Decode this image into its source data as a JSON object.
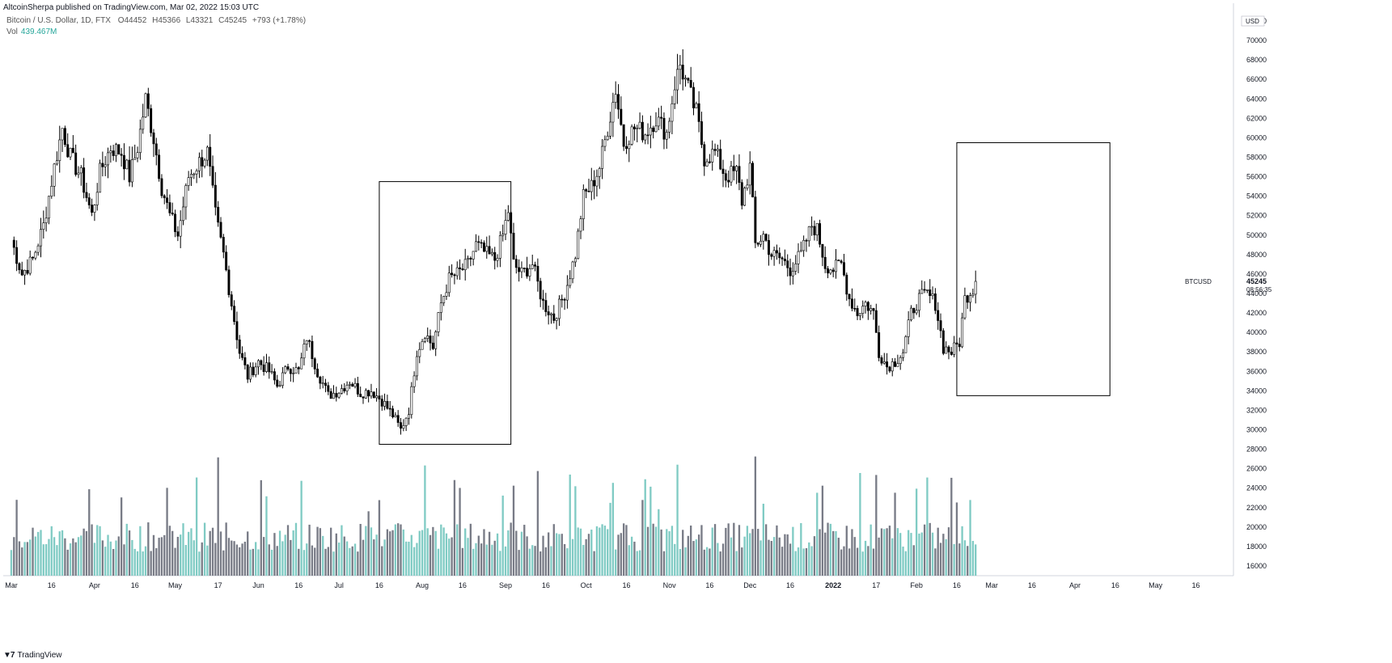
{
  "header": {
    "published": "AltcoinSherpa published on TradingView.com, Mar 02, 2022 15:03 UTC",
    "symbol_desc": "Bitcoin / U.S. Dollar, 1D, FTX",
    "o_label": "O",
    "o_value": "44452",
    "h_label": "H",
    "h_value": "45366",
    "l_label": "L",
    "l_value": "43321",
    "c_label": "C",
    "c_value": "45245",
    "change": "+793 (+1.78%)",
    "vol_label": "Vol",
    "vol_value": "439.467M"
  },
  "footer": {
    "brand": "TradingView"
  },
  "price_axis": {
    "currency": "USD",
    "symbol_tag": "BTCUSD",
    "last_price": "45245",
    "countdown": "08:56:35"
  },
  "colors": {
    "up_candle": "#ffffff",
    "down_candle": "#000000",
    "vol_up": "#80cbc4",
    "vol_down": "#787b86",
    "box": "#000000"
  },
  "chart_data": {
    "type": "candlestick",
    "ylim": [
      15000,
      73000
    ],
    "y_ticks": [
      16000,
      18000,
      20000,
      22000,
      24000,
      26000,
      28000,
      30000,
      32000,
      34000,
      36000,
      38000,
      40000,
      42000,
      44000,
      46000,
      48000,
      50000,
      52000,
      54000,
      56000,
      58000,
      60000,
      62000,
      64000,
      66000,
      68000,
      70000,
      72000
    ],
    "x_ticks": [
      {
        "label": "Mar",
        "day": 0
      },
      {
        "label": "16",
        "day": 15
      },
      {
        "label": "Apr",
        "day": 31
      },
      {
        "label": "16",
        "day": 46
      },
      {
        "label": "May",
        "day": 61
      },
      {
        "label": "17",
        "day": 77
      },
      {
        "label": "Jun",
        "day": 92
      },
      {
        "label": "16",
        "day": 107
      },
      {
        "label": "Jul",
        "day": 122
      },
      {
        "label": "16",
        "day": 137
      },
      {
        "label": "Aug",
        "day": 153
      },
      {
        "label": "16",
        "day": 168
      },
      {
        "label": "Sep",
        "day": 184
      },
      {
        "label": "16",
        "day": 199
      },
      {
        "label": "Oct",
        "day": 214
      },
      {
        "label": "16",
        "day": 229
      },
      {
        "label": "Nov",
        "day": 245
      },
      {
        "label": "16",
        "day": 260
      },
      {
        "label": "Dec",
        "day": 275
      },
      {
        "label": "16",
        "day": 290
      },
      {
        "label": "2022",
        "day": 306
      },
      {
        "label": "17",
        "day": 322
      },
      {
        "label": "Feb",
        "day": 337
      },
      {
        "label": "16",
        "day": 352
      },
      {
        "label": "Mar",
        "day": 365
      },
      {
        "label": "16",
        "day": 380
      },
      {
        "label": "Apr",
        "day": 396
      },
      {
        "label": "16",
        "day": 411
      },
      {
        "label": "May",
        "day": 426
      },
      {
        "label": "16",
        "day": 441
      }
    ],
    "x_domain": [
      -3,
      455
    ],
    "closes": [
      [
        0,
        49500
      ],
      [
        4,
        46000
      ],
      [
        8,
        47500
      ],
      [
        12,
        51000
      ],
      [
        16,
        57000
      ],
      [
        19,
        61000
      ],
      [
        22,
        58000
      ],
      [
        26,
        56000
      ],
      [
        30,
        52000
      ],
      [
        33,
        56500
      ],
      [
        37,
        59000
      ],
      [
        41,
        58500
      ],
      [
        44,
        56000
      ],
      [
        47,
        59000
      ],
      [
        50,
        64000
      ],
      [
        53,
        60000
      ],
      [
        56,
        55000
      ],
      [
        59,
        52000
      ],
      [
        62,
        50000
      ],
      [
        66,
        56000
      ],
      [
        70,
        57500
      ],
      [
        73,
        58500
      ],
      [
        76,
        52000
      ],
      [
        79,
        48000
      ],
      [
        82,
        43000
      ],
      [
        85,
        38000
      ],
      [
        88,
        35500
      ],
      [
        92,
        37000
      ],
      [
        96,
        36000
      ],
      [
        99,
        34500
      ],
      [
        103,
        36500
      ],
      [
        107,
        36000
      ],
      [
        110,
        39500
      ],
      [
        114,
        36000
      ],
      [
        118,
        33500
      ],
      [
        122,
        34000
      ],
      [
        126,
        35000
      ],
      [
        130,
        33800
      ],
      [
        134,
        34000
      ],
      [
        138,
        33000
      ],
      [
        142,
        31500
      ],
      [
        145,
        30000
      ],
      [
        148,
        32000
      ],
      [
        151,
        38000
      ],
      [
        154,
        40000
      ],
      [
        157,
        38500
      ],
      [
        160,
        43000
      ],
      [
        163,
        45500
      ],
      [
        166,
        46000
      ],
      [
        170,
        47000
      ],
      [
        173,
        49000
      ],
      [
        177,
        48000
      ],
      [
        180,
        47500
      ],
      [
        183,
        50000
      ],
      [
        185,
        52500
      ],
      [
        187,
        47000
      ],
      [
        190,
        46000
      ],
      [
        194,
        47000
      ],
      [
        198,
        43000
      ],
      [
        202,
        41500
      ],
      [
        206,
        44000
      ],
      [
        210,
        48000
      ],
      [
        213,
        54000
      ],
      [
        216,
        55000
      ],
      [
        219,
        57000
      ],
      [
        222,
        61000
      ],
      [
        225,
        65000
      ],
      [
        228,
        59500
      ],
      [
        232,
        61000
      ],
      [
        236,
        60500
      ],
      [
        240,
        62000
      ],
      [
        244,
        60500
      ],
      [
        247,
        65500
      ],
      [
        249,
        67500
      ],
      [
        252,
        65000
      ],
      [
        255,
        62500
      ],
      [
        258,
        58000
      ],
      [
        262,
        58500
      ],
      [
        266,
        56000
      ],
      [
        270,
        56500
      ],
      [
        272,
        53500
      ],
      [
        275,
        57000
      ],
      [
        277,
        49000
      ],
      [
        280,
        50000
      ],
      [
        283,
        48000
      ],
      [
        287,
        47500
      ],
      [
        290,
        46500
      ],
      [
        294,
        48000
      ],
      [
        298,
        51000
      ],
      [
        300,
        50500
      ],
      [
        303,
        47000
      ],
      [
        306,
        46500
      ],
      [
        309,
        47000
      ],
      [
        312,
        43500
      ],
      [
        315,
        42000
      ],
      [
        318,
        43000
      ],
      [
        321,
        42000
      ],
      [
        323,
        38000
      ],
      [
        326,
        36500
      ],
      [
        329,
        37000
      ],
      [
        332,
        38000
      ],
      [
        335,
        42000
      ],
      [
        338,
        43500
      ],
      [
        341,
        44000
      ],
      [
        344,
        43000
      ],
      [
        347,
        38500
      ],
      [
        350,
        38000
      ],
      [
        353,
        39000
      ],
      [
        355,
        43500
      ],
      [
        358,
        44500
      ],
      [
        359,
        45245
      ]
    ],
    "volumes_day_value": "daily volume bars, scale 0-100 relative",
    "boxes": [
      {
        "label": "",
        "day_start": 137,
        "day_end": 186,
        "price_top": 55500,
        "price_bottom": 28500
      },
      {
        "label": "",
        "day_start": 352,
        "day_end": 409,
        "price_top": 59500,
        "price_bottom": 33500
      }
    ],
    "last_price": 45245
  }
}
